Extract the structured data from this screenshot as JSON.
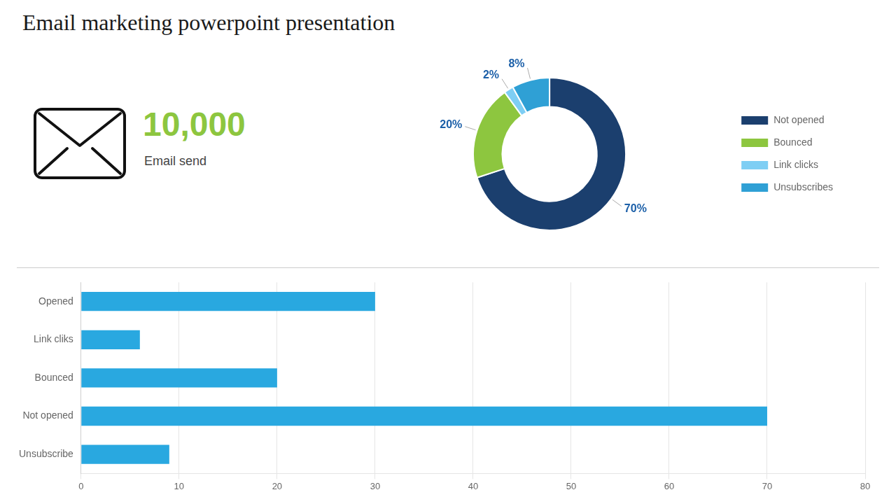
{
  "chart_data": [
    {
      "type": "doughnut",
      "title": "Email marketing powerpoint presentation",
      "annotations": [
        "10,000",
        "Email send"
      ],
      "categories": [
        "Not opened",
        "Bounced",
        "Link clicks",
        "Unsubscribes"
      ],
      "values": [
        70,
        20,
        2,
        8
      ],
      "value_labels": [
        "70%",
        "20%",
        "2%",
        "8%"
      ],
      "data_labels": true,
      "colors": [
        "#1b3f6e",
        "#8dc63f",
        "#7ecef4",
        "#2fa0d5"
      ],
      "legend": "right"
    },
    {
      "type": "bar",
      "orientation": "horizontal",
      "categories": [
        "Opened",
        "Link cliks",
        "Bounced",
        "Not opened",
        "Unsubscribe"
      ],
      "values": [
        30,
        6,
        20,
        70,
        9
      ],
      "color": "#29a8e0",
      "xlim": [
        0,
        80
      ],
      "xticks": [
        0,
        10,
        20,
        30,
        40,
        50,
        60,
        70,
        80
      ],
      "grid": true
    }
  ]
}
